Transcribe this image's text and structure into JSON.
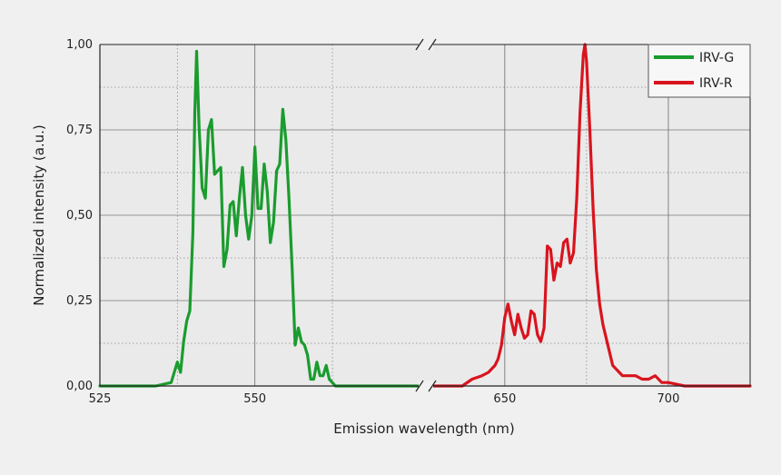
{
  "chart_data": {
    "type": "line",
    "title": "",
    "xlabel": "Emission wavelength (nm)",
    "ylabel": "Normalized intensity (a.u.)",
    "x_axis_broken": true,
    "x_segments": [
      {
        "xlim": [
          525,
          577
        ],
        "ticks": [
          525,
          550
        ],
        "tick_labels": [
          "525",
          "550"
        ]
      },
      {
        "xlabel_note": "",
        "xlim": [
          627,
          725
        ],
        "ticks": [
          650,
          700
        ],
        "tick_labels": [
          "650",
          "700"
        ]
      }
    ],
    "ylim": [
      0,
      1
    ],
    "y_ticks": [
      0,
      0.25,
      0.5,
      0.75,
      1.0
    ],
    "y_tick_labels": [
      "0,00",
      "0,25",
      "0,50",
      "0,75",
      "1,00"
    ],
    "grid": true,
    "legend_position": "top-right",
    "series": [
      {
        "name": "IRV-G",
        "color": "#1a9c2e",
        "x": [
          525,
          534,
          536.5,
          537.5,
          538,
          538.5,
          539,
          539.5,
          540,
          540.3,
          540.6,
          541,
          541.5,
          542,
          542.5,
          543,
          543.5,
          544,
          544.5,
          545,
          545.5,
          546,
          546.5,
          547,
          547.5,
          548,
          548.5,
          549,
          549.5,
          550,
          550.5,
          551,
          551.5,
          552,
          552.5,
          553,
          553.5,
          554,
          554.5,
          555,
          555.5,
          556,
          556.5,
          557,
          557.5,
          558,
          558.5,
          559,
          559.5,
          560,
          560.5,
          561,
          561.5,
          562,
          563,
          577
        ],
        "y": [
          0,
          0,
          0.01,
          0.07,
          0.04,
          0.13,
          0.19,
          0.22,
          0.45,
          0.8,
          0.98,
          0.76,
          0.58,
          0.55,
          0.75,
          0.78,
          0.62,
          0.63,
          0.64,
          0.35,
          0.4,
          0.53,
          0.54,
          0.44,
          0.55,
          0.64,
          0.5,
          0.43,
          0.5,
          0.7,
          0.52,
          0.52,
          0.65,
          0.57,
          0.42,
          0.48,
          0.63,
          0.65,
          0.81,
          0.72,
          0.55,
          0.35,
          0.12,
          0.17,
          0.13,
          0.12,
          0.09,
          0.02,
          0.02,
          0.07,
          0.03,
          0.03,
          0.06,
          0.02,
          0.0,
          0
        ]
      },
      {
        "name": "IRV-R",
        "color": "#d9141e",
        "x": [
          627,
          637,
          640,
          643,
          645,
          647,
          648,
          649,
          650,
          651,
          652,
          653,
          654,
          655,
          656,
          657,
          658,
          659,
          660,
          661,
          662,
          663,
          664,
          665,
          666,
          667,
          668,
          669,
          670,
          671,
          672,
          673,
          674,
          674.5,
          675,
          676,
          677,
          678,
          679,
          680,
          681,
          682,
          683,
          684,
          685,
          686,
          688,
          690,
          692,
          694,
          696,
          698,
          700,
          705,
          725
        ],
        "y": [
          0,
          0,
          0.02,
          0.03,
          0.04,
          0.06,
          0.08,
          0.12,
          0.2,
          0.24,
          0.19,
          0.15,
          0.21,
          0.17,
          0.14,
          0.15,
          0.22,
          0.21,
          0.15,
          0.13,
          0.17,
          0.41,
          0.4,
          0.31,
          0.36,
          0.35,
          0.42,
          0.43,
          0.36,
          0.39,
          0.55,
          0.8,
          0.97,
          1.0,
          0.95,
          0.75,
          0.52,
          0.34,
          0.24,
          0.18,
          0.14,
          0.1,
          0.06,
          0.05,
          0.04,
          0.03,
          0.03,
          0.03,
          0.02,
          0.02,
          0.03,
          0.01,
          0.01,
          0,
          0
        ]
      }
    ]
  }
}
